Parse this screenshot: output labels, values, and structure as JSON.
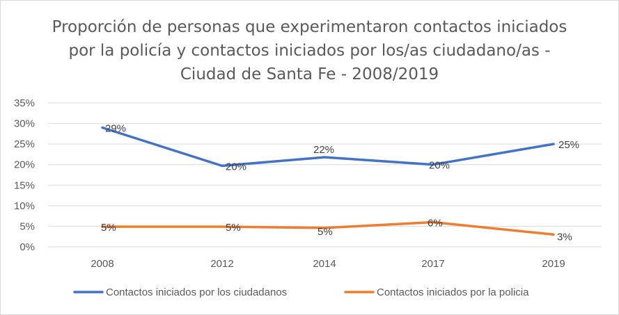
{
  "chart_data": {
    "type": "line",
    "title": "Proporción de personas que experimentaron contactos iniciados por la policía y contactos iniciados por los/as ciudadano/as - Ciudad de Santa Fe - 2008/2019",
    "categories": [
      "2008",
      "2012",
      "2014",
      "2017",
      "2019"
    ],
    "ylim": [
      0,
      0.35
    ],
    "yticks": [
      "0%",
      "5%",
      "10%",
      "15%",
      "20%",
      "25%",
      "30%",
      "35%"
    ],
    "grid": true,
    "legend_position": "bottom",
    "series": [
      {
        "name": "Contactos iniciados por los ciudadanos",
        "color": "#4472c4",
        "values": [
          0.29,
          0.197,
          0.218,
          0.2,
          0.25
        ],
        "labels": [
          "29%",
          "20%",
          "22%",
          "20%",
          "25%"
        ]
      },
      {
        "name": "Contactos iniciados por la policia",
        "color": "#ed7d31",
        "values": [
          0.049,
          0.049,
          0.046,
          0.06,
          0.03
        ],
        "labels": [
          "5%",
          "5%",
          "5%",
          "6%",
          "3%"
        ]
      }
    ]
  }
}
